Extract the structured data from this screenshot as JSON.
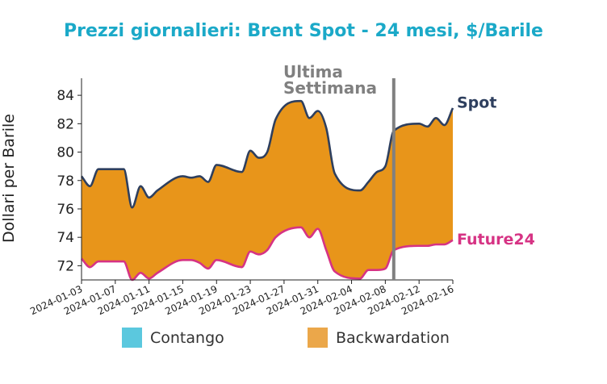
{
  "chart_data": {
    "type": "area",
    "title": "Prezzi giornalieri: Brent Spot - 24 mesi, $/Barile",
    "ylabel": "Dollari per Barile",
    "xlabel": "",
    "ylim": [
      71,
      85.2
    ],
    "yticks": [
      72,
      74,
      76,
      78,
      80,
      82,
      84
    ],
    "xticks": [
      "2024-01-03",
      "2024-01-07",
      "2024-01-11",
      "2024-01-15",
      "2024-01-19",
      "2024-01-23",
      "2024-01-27",
      "2024-01-31",
      "2024-02-04",
      "2024-02-08",
      "2024-02-12",
      "2024-02-16"
    ],
    "x": [
      "2024-01-03",
      "2024-01-04",
      "2024-01-05",
      "2024-01-08",
      "2024-01-09",
      "2024-01-10",
      "2024-01-11",
      "2024-01-12",
      "2024-01-15",
      "2024-01-16",
      "2024-01-17",
      "2024-01-18",
      "2024-01-19",
      "2024-01-22",
      "2024-01-23",
      "2024-01-24",
      "2024-01-25",
      "2024-01-26",
      "2024-01-29",
      "2024-01-30",
      "2024-01-31",
      "2024-02-01",
      "2024-02-02",
      "2024-02-05",
      "2024-02-06",
      "2024-02-07",
      "2024-02-08",
      "2024-02-09",
      "2024-02-12",
      "2024-02-13",
      "2024-02-14",
      "2024-02-15",
      "2024-02-16"
    ],
    "series": [
      {
        "name": "Spot",
        "color": "#2e3f5e",
        "values": [
          78.3,
          77.6,
          78.8,
          78.8,
          76.1,
          77.6,
          76.8,
          77.3,
          78.3,
          78.2,
          78.3,
          77.9,
          79.1,
          78.6,
          80.1,
          79.6,
          80.0,
          82.3,
          83.6,
          82.4,
          82.9,
          81.7,
          78.5,
          77.3,
          77.9,
          78.6,
          79.0,
          81.5,
          82.0,
          81.8,
          82.4,
          81.9,
          83.1
        ]
      },
      {
        "name": "Future24",
        "color": "#d63384",
        "values": [
          72.5,
          71.9,
          72.3,
          72.3,
          71.0,
          71.5,
          71.1,
          71.5,
          72.4,
          72.4,
          72.2,
          71.8,
          72.4,
          71.9,
          73.0,
          72.8,
          73.1,
          74.0,
          74.7,
          74.0,
          74.6,
          73.1,
          71.6,
          71.1,
          71.7,
          71.7,
          71.8,
          73.1,
          73.4,
          73.4,
          73.5,
          73.5,
          73.8
        ]
      }
    ],
    "fill_between": {
      "backwardation_color": "#e8951a",
      "contango_color": "#5bc8de"
    },
    "vline": {
      "x": "2024-02-09",
      "label": "Ultima Settimana",
      "color": "#808080"
    },
    "legend": {
      "placement": "bottom",
      "entries": [
        {
          "label": "Contango",
          "color": "#5bc8de"
        },
        {
          "label": "Backwardation",
          "color": "#eba74a"
        }
      ]
    },
    "title_color": "#1ba9c8",
    "grid": false
  }
}
